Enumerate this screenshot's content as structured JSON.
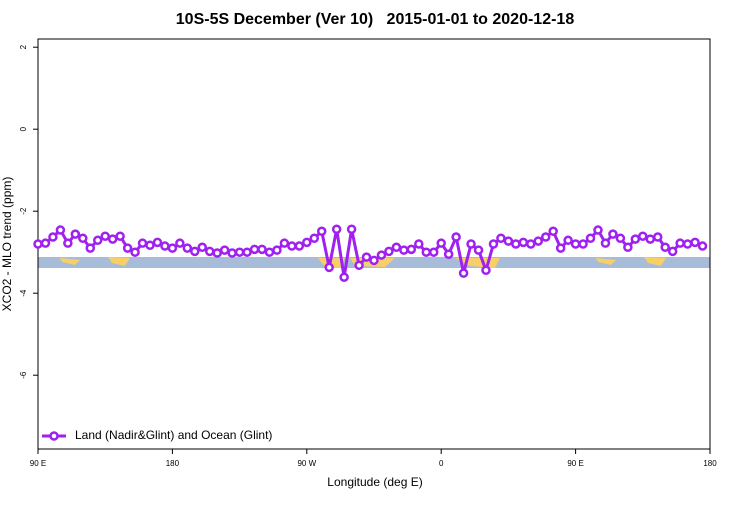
{
  "chart_data": {
    "type": "line",
    "title": "10S-5S December (Ver 10)   2015-01-01 to 2020-12-18",
    "x_label": "Longitude (deg E)",
    "y_label": "XCO2 - MLO trend (ppm)",
    "x": [
      90,
      95,
      100,
      105,
      110,
      115,
      120,
      125,
      130,
      135,
      140,
      145,
      150,
      155,
      160,
      165,
      170,
      175,
      180,
      185,
      190,
      195,
      200,
      205,
      210,
      215,
      220,
      225,
      230,
      235,
      240,
      245,
      250,
      255,
      260,
      265,
      270,
      275,
      280,
      285,
      290,
      295,
      300,
      305,
      310,
      315,
      320,
      325,
      330,
      335,
      340,
      345,
      350,
      355,
      360,
      365,
      370,
      375,
      380,
      385,
      390,
      395,
      400,
      405,
      410,
      415,
      420,
      425,
      430,
      435,
      440,
      445,
      450,
      455,
      460,
      465,
      470,
      475,
      480,
      485,
      490,
      495,
      500,
      505,
      510,
      515,
      520,
      525,
      530,
      535
    ],
    "series": [
      {
        "name": "Land (Nadir&Glint) and Ocean (Glint)",
        "color": "#a020f0",
        "values": [
          -2.8,
          -2.78,
          -2.63,
          -2.46,
          -2.78,
          -2.56,
          -2.66,
          -2.9,
          -2.71,
          -2.61,
          -2.68,
          -2.61,
          -2.9,
          -3.0,
          -2.78,
          -2.83,
          -2.76,
          -2.85,
          -2.9,
          -2.78,
          -2.9,
          -2.98,
          -2.88,
          -2.98,
          -3.02,
          -2.95,
          -3.02,
          -3.0,
          -3.0,
          -2.93,
          -2.93,
          -3.0,
          -2.95,
          -2.78,
          -2.85,
          -2.85,
          -2.76,
          -2.66,
          -2.49,
          -3.37,
          -2.44,
          -3.61,
          -2.44,
          -3.32,
          -3.12,
          -3.2,
          -3.07,
          -2.98,
          -2.88,
          -2.95,
          -2.93,
          -2.8,
          -3.0,
          -3.0,
          -2.78,
          -3.05,
          -2.63,
          -3.51,
          -2.8,
          -2.95,
          -3.44,
          -2.8,
          -2.66,
          -2.73,
          -2.8,
          -2.76,
          -2.8,
          -2.73,
          -2.63,
          -2.49,
          -2.9,
          -2.71,
          -2.8,
          -2.8,
          -2.66,
          -2.46,
          -2.78,
          -2.56,
          -2.66,
          -2.88,
          -2.68,
          -2.61,
          -2.68,
          -2.63,
          -2.88,
          -2.98,
          -2.78,
          -2.8,
          -2.76,
          -2.85
        ]
      }
    ],
    "xlim": [
      90,
      540
    ],
    "xticks": [
      {
        "value": 90,
        "label": "90 E"
      },
      180,
      {
        "value": 270,
        "label": "90 W"
      },
      {
        "value": 360,
        "label": "0"
      },
      {
        "value": 450,
        "label": "90 E"
      },
      {
        "value": 540,
        "label": "180"
      }
    ],
    "ylim": [
      -7.8,
      2.2
    ],
    "yticks": [
      2,
      0,
      -2,
      -4,
      -6
    ],
    "legend": "bottom-left"
  }
}
